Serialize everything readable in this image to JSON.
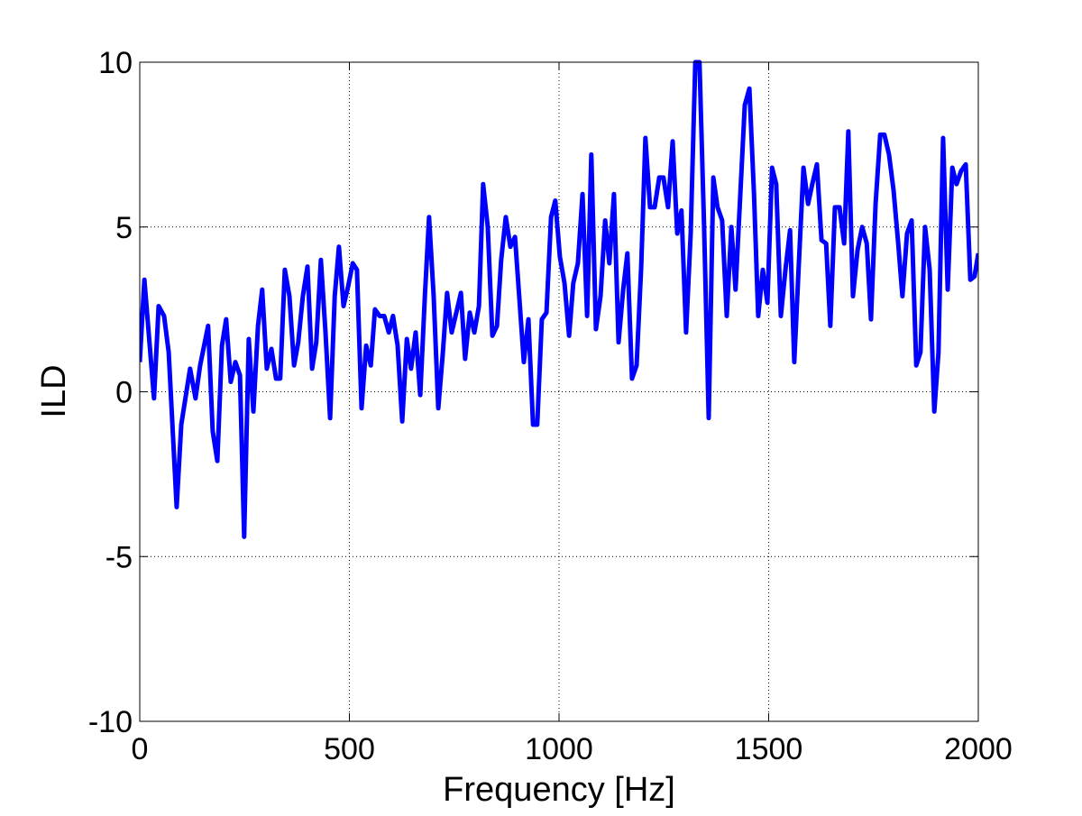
{
  "chart_data": {
    "type": "line",
    "xlabel": "Frequency [Hz]",
    "ylabel": "ILD",
    "xlim": [
      0,
      2000
    ],
    "xticks": [
      0,
      500,
      1000,
      1500,
      2000
    ],
    "ylim": [
      -10,
      10
    ],
    "yticks": [
      -10,
      -5,
      0,
      5,
      10
    ],
    "grid": true,
    "x": [
      0,
      11,
      34,
      45,
      58,
      69,
      88,
      99,
      120,
      133,
      144,
      163,
      174,
      185,
      196,
      206,
      217,
      228,
      239,
      249,
      260,
      271,
      282,
      292,
      303,
      314,
      325,
      335,
      346,
      357,
      368,
      378,
      389,
      400,
      411,
      421,
      432,
      443,
      454,
      465,
      475,
      486,
      497,
      508,
      518,
      529,
      540,
      551,
      561,
      572,
      583,
      594,
      604,
      615,
      626,
      637,
      647,
      658,
      669,
      680,
      690,
      701,
      712,
      723,
      733,
      744,
      755,
      766,
      776,
      787,
      798,
      809,
      819,
      830,
      841,
      852,
      862,
      873,
      884,
      895,
      905,
      916,
      927,
      938,
      948,
      959,
      970,
      981,
      991,
      1002,
      1013,
      1024,
      1034,
      1045,
      1056,
      1067,
      1077,
      1088,
      1099,
      1110,
      1120,
      1131,
      1142,
      1153,
      1163,
      1174,
      1185,
      1196,
      1206,
      1217,
      1228,
      1239,
      1249,
      1260,
      1271,
      1282,
      1292,
      1303,
      1314,
      1325,
      1335,
      1346,
      1357,
      1368,
      1378,
      1389,
      1400,
      1411,
      1421,
      1432,
      1443,
      1454,
      1465,
      1475,
      1486,
      1497,
      1508,
      1518,
      1529,
      1540,
      1551,
      1561,
      1572,
      1583,
      1594,
      1604,
      1615,
      1626,
      1637,
      1647,
      1658,
      1669,
      1680,
      1690,
      1701,
      1712,
      1723,
      1734,
      1744,
      1755,
      1766,
      1776,
      1787,
      1798,
      1809,
      1819,
      1830,
      1841,
      1852,
      1862,
      1873,
      1884,
      1895,
      1905,
      1916,
      1927,
      1938,
      1948,
      1959,
      1970,
      1981,
      1991,
      2000
    ],
    "series": [
      {
        "color": "#0000ff",
        "values": [
          0.9,
          3.4,
          -0.2,
          2.6,
          2.3,
          1.2,
          -3.5,
          -1.0,
          0.7,
          -0.2,
          0.8,
          2.0,
          -1.2,
          -2.1,
          1.4,
          2.2,
          0.3,
          0.9,
          0.5,
          -4.4,
          1.6,
          -0.6,
          2.0,
          3.1,
          0.7,
          1.3,
          0.4,
          0.4,
          3.7,
          2.9,
          0.8,
          1.5,
          2.9,
          3.8,
          0.7,
          1.5,
          4.0,
          1.8,
          -0.8,
          2.9,
          4.4,
          2.6,
          3.2,
          3.9,
          3.7,
          -0.5,
          1.4,
          0.8,
          2.5,
          2.3,
          2.3,
          1.8,
          2.3,
          1.4,
          -0.9,
          1.6,
          0.7,
          1.8,
          -0.1,
          2.9,
          5.3,
          2.9,
          -0.5,
          1.2,
          3.0,
          1.8,
          2.4,
          3.0,
          1.0,
          2.4,
          1.8,
          2.6,
          6.3,
          5.0,
          1.7,
          2.0,
          4.0,
          5.3,
          4.4,
          4.7,
          2.9,
          0.9,
          2.2,
          -1.0,
          -1.0,
          2.2,
          2.4,
          5.3,
          5.8,
          4.1,
          3.3,
          1.7,
          3.3,
          3.9,
          6.0,
          2.3,
          7.2,
          1.9,
          2.9,
          5.2,
          3.9,
          6.0,
          1.5,
          3.1,
          4.2,
          0.4,
          0.8,
          3.8,
          7.7,
          5.6,
          5.6,
          6.5,
          6.5,
          5.6,
          7.6,
          4.8,
          5.5,
          1.8,
          4.8,
          10,
          10,
          5.0,
          -0.8,
          6.5,
          5.6,
          5.2,
          2.3,
          5.0,
          3.1,
          5.9,
          8.7,
          9.2,
          6.0,
          2.3,
          3.7,
          2.7,
          6.8,
          6.3,
          2.3,
          3.7,
          4.9,
          0.9,
          3.9,
          6.8,
          5.7,
          6.3,
          6.9,
          4.6,
          4.5,
          2.0,
          5.6,
          5.6,
          4.5,
          7.9,
          2.9,
          4.3,
          5.0,
          4.5,
          2.2,
          5.7,
          7.8,
          7.8,
          7.2,
          6.1,
          4.5,
          2.9,
          4.8,
          5.2,
          0.8,
          1.2,
          5.0,
          3.7,
          -0.6,
          1.2,
          7.7,
          3.1,
          6.8,
          6.3,
          6.7,
          6.9,
          3.4,
          3.5,
          4.2
        ]
      }
    ]
  }
}
